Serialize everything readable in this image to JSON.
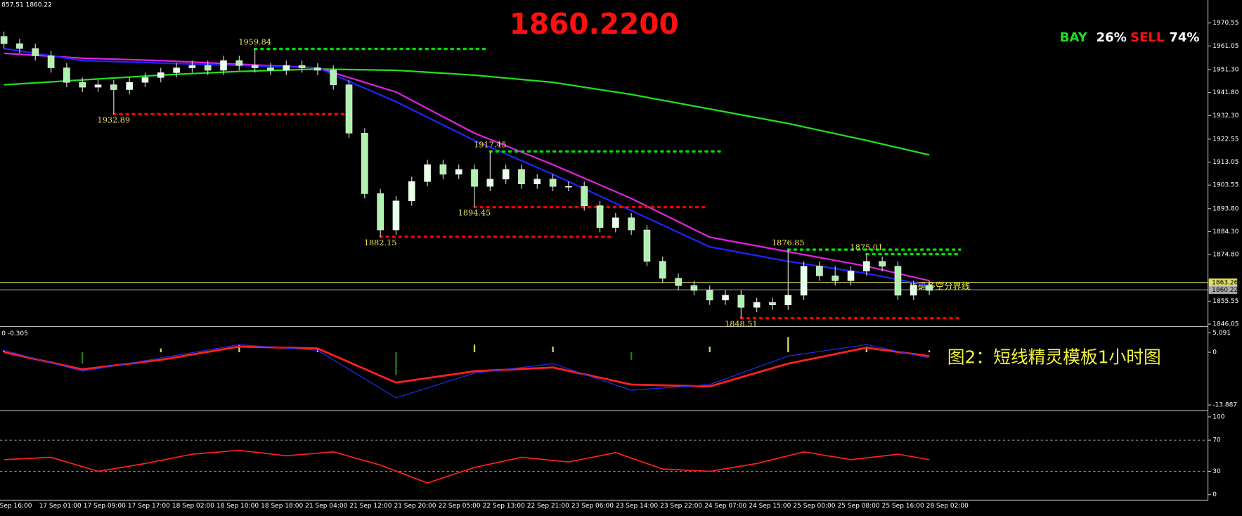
{
  "chart_data": [
    {
      "type": "candlestick",
      "header": "857.51 1860.22",
      "banner": "1860.2200",
      "ratio": {
        "buy_label": "BAY",
        "buy_value": "26%",
        "sell_label": "SELL",
        "sell_value": "74%"
      },
      "caption": "图2：短线精灵模板1小时图",
      "line_note": "精确多空分界线",
      "bull_color": "#e8ffe8",
      "bear_color": "#b0f0b0",
      "opens": [
        1965,
        1962,
        1960,
        1957,
        1952,
        1946,
        1944,
        1945,
        1943,
        1946,
        1948,
        1950,
        1952,
        1953,
        1951,
        1955,
        1953,
        1952,
        1951,
        1953,
        1952,
        1951,
        1945,
        1925,
        1900,
        1885,
        1897,
        1905,
        1912,
        1908,
        1910,
        1903,
        1906,
        1910,
        1904,
        1906,
        1903,
        1903,
        1895,
        1886,
        1890,
        1885,
        1872,
        1865,
        1862,
        1860,
        1856,
        1858,
        1853,
        1855,
        1854,
        1858,
        1870,
        1866,
        1864,
        1868,
        1872,
        1870,
        1858,
        1862
      ],
      "highs": [
        1967,
        1964,
        1962,
        1959,
        1954,
        1948,
        1947,
        1947,
        1948,
        1950,
        1952,
        1954,
        1955,
        1955,
        1957,
        1957,
        1959.84,
        1954,
        1955,
        1955,
        1954,
        1953,
        1947,
        1927,
        1902,
        1899,
        1907,
        1914,
        1914,
        1912,
        1912,
        1917.45,
        1912,
        1912,
        1908,
        1908,
        1905,
        1905,
        1897,
        1892,
        1892,
        1887,
        1874,
        1867,
        1864,
        1862,
        1860,
        1860,
        1857,
        1857,
        1876.85,
        1872,
        1872,
        1870,
        1870,
        1875.01,
        1874,
        1872,
        1864,
        1864
      ],
      "lows": [
        1960,
        1958,
        1955,
        1950,
        1944,
        1942,
        1942,
        1932.89,
        1941,
        1944,
        1946,
        1948,
        1950,
        1949,
        1949,
        1951,
        1950,
        1949,
        1949,
        1950,
        1949,
        1943,
        1923,
        1898,
        1882.15,
        1883,
        1895,
        1903,
        1906,
        1906,
        1894.45,
        1901,
        1904,
        1902,
        1902,
        1901,
        1901,
        1893,
        1884,
        1884,
        1883,
        1870,
        1863,
        1860,
        1858,
        1854,
        1854,
        1848.51,
        1851,
        1852,
        1852,
        1856,
        1864,
        1862,
        1862,
        1866,
        1868,
        1856,
        1856,
        1858
      ],
      "closes": [
        1962,
        1960,
        1957,
        1952,
        1946,
        1944,
        1945,
        1943,
        1946,
        1948,
        1950,
        1952,
        1953,
        1951,
        1955,
        1953,
        1952,
        1951,
        1953,
        1952,
        1951,
        1945,
        1925,
        1900,
        1885,
        1897,
        1905,
        1912,
        1908,
        1910,
        1903,
        1906,
        1910,
        1904,
        1906,
        1903,
        1903,
        1895,
        1886,
        1890,
        1885,
        1872,
        1865,
        1862,
        1860,
        1856,
        1858,
        1853,
        1855,
        1854,
        1858,
        1870,
        1866,
        1864,
        1868,
        1872,
        1870,
        1858,
        1862,
        1860
      ],
      "ma_x": [
        0,
        5,
        10,
        15,
        20,
        25,
        30,
        35,
        40,
        45,
        50,
        55,
        59
      ],
      "series": [
        {
          "color": "#22dd22",
          "values": [
            1945,
            1947,
            1949,
            1950.5,
            1951.5,
            1951,
            1949,
            1946,
            1941,
            1935,
            1929,
            1922,
            1916
          ]
        },
        {
          "color": "#dd22dd",
          "values": [
            1958,
            1956,
            1955,
            1953.5,
            1952,
            1942,
            1925,
            1912,
            1898,
            1882,
            1876,
            1870,
            1864
          ]
        },
        {
          "color": "#2222ff",
          "values": [
            1960,
            1955,
            1954,
            1953,
            1952,
            1938,
            1922,
            1908,
            1893,
            1878,
            1872,
            1867,
            1862
          ]
        }
      ],
      "levels": [
        {
          "value": 1959.84,
          "color": "#00e000"
        },
        {
          "value": 1932.89,
          "color": "#ff0000"
        },
        {
          "value": 1917.45,
          "color": "#00e000"
        },
        {
          "value": 1894.45,
          "color": "#ff0000"
        },
        {
          "value": 1882.15,
          "color": "#ff0000"
        },
        {
          "value": 1876.85,
          "color": "#00e000"
        },
        {
          "value": 1875.01,
          "color": "#00e000"
        },
        {
          "value": 1848.51,
          "color": "#ff0000"
        }
      ],
      "hlines": [
        {
          "value": 1863.26,
          "color": "#e0e060"
        },
        {
          "value": 1860.22,
          "color": "#aaaaaa"
        }
      ],
      "ylim": [
        1845.05,
        1980.05
      ],
      "yticks": [
        1970.55,
        1961.05,
        {
          "value": 1951.3,
          "label": "1951.30"
        },
        {
          "value": 1941.8,
          "label": "1941.80"
        },
        {
          "value": 1932.3,
          "label": "1932.30"
        },
        1922.55,
        1913.05,
        1903.55,
        {
          "value": 1893.8,
          "label": "1893.80"
        },
        {
          "value": 1884.3,
          "label": "1884.30"
        },
        {
          "value": 1874.8,
          "label": "1874.80"
        },
        1855.55,
        1846.05
      ],
      "x_labels": [
        "Sep 16:00",
        "17 Sep 01:00",
        "17 Sep 09:00",
        "17 Sep 17:00",
        "18 Sep 02:00",
        "18 Sep 10:00",
        "18 Sep 18:00",
        "21 Sep 04:00",
        "21 Sep 12:00",
        "21 Sep 20:00",
        "22 Sep 05:00",
        "22 Sep 13:00",
        "22 Sep 21:00",
        "23 Sep 06:00",
        "23 Sep 14:00",
        "23 Sep 22:00",
        "24 Sep 07:00",
        "24 Sep 15:00",
        "25 Sep 00:00",
        "25 Sep 08:00",
        "25 Sep 16:00",
        "28 Sep 02:00"
      ]
    },
    {
      "type": "macd",
      "header": "0 -0.305",
      "x": [
        0,
        5,
        10,
        15,
        20,
        25,
        30,
        35,
        40,
        45,
        50,
        55,
        59
      ],
      "histogram": {
        "color": "#d8d860",
        "values": [
          0.5,
          -3,
          1,
          2,
          1,
          -6,
          2,
          1.5,
          -2,
          1.5,
          4,
          1.5,
          0.5
        ]
      },
      "series": [
        {
          "color": "#ff2020",
          "values": [
            0,
            -4.5,
            -2,
            1.5,
            1,
            -8,
            -5,
            -4,
            -8.5,
            -9,
            -3,
            1.2,
            -1
          ]
        },
        {
          "color": "#2030ff",
          "values": [
            0.5,
            -5,
            -1.5,
            2,
            0.5,
            -12,
            -5.5,
            -3,
            -10,
            -8.5,
            -1,
            2,
            -1.5
          ]
        }
      ],
      "ylim": [
        -15.35,
        6.34
      ],
      "yticks": [
        5.091,
        0,
        -13.887
      ]
    },
    {
      "type": "rsi",
      "x": [
        0,
        3,
        6,
        9,
        12,
        15,
        18,
        21,
        24,
        27,
        30,
        33,
        36,
        39,
        42,
        45,
        48,
        51,
        54,
        57,
        59
      ],
      "color": "#ff2020",
      "values": [
        45,
        48,
        30,
        40,
        52,
        57,
        50,
        55,
        38,
        15,
        35,
        48,
        42,
        54,
        33,
        30,
        40,
        55,
        45,
        52,
        45
      ],
      "levels": [
        70,
        30
      ],
      "ylim": [
        -6,
        106
      ],
      "yticks": [
        100,
        70,
        30,
        0
      ]
    }
  ]
}
